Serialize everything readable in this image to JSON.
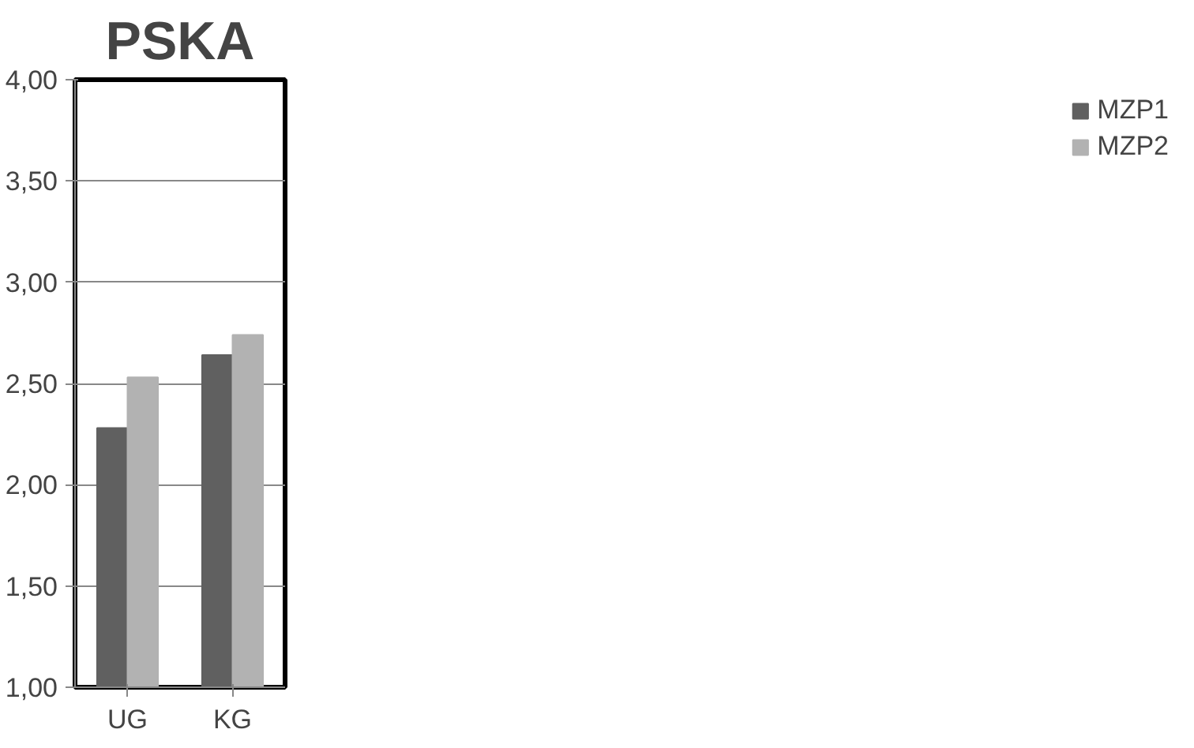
{
  "chart_data": {
    "type": "bar",
    "title": "PSKA",
    "categories": [
      "UG",
      "KG"
    ],
    "series": [
      {
        "name": "MZP1",
        "color": "#606060",
        "values": [
          2.28,
          2.64
        ]
      },
      {
        "name": "MZP2",
        "color": "#b2b2b2",
        "values": [
          2.53,
          2.74
        ]
      }
    ],
    "ylim": [
      1,
      4
    ],
    "yticks": [
      {
        "value": 1,
        "label": "1,00"
      },
      {
        "value": 1.5,
        "label": "1,50"
      },
      {
        "value": 2,
        "label": "2,00"
      },
      {
        "value": 2.5,
        "label": "2,50"
      },
      {
        "value": 3,
        "label": "3,00"
      },
      {
        "value": 3.5,
        "label": "3,50"
      },
      {
        "value": 4,
        "label": "4,00"
      }
    ],
    "grid": "y",
    "legend": "right"
  }
}
